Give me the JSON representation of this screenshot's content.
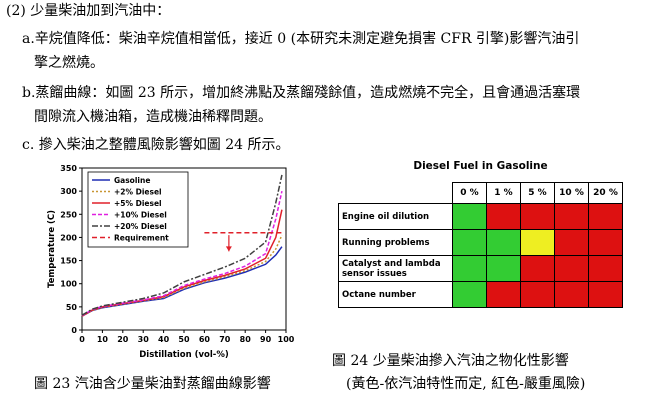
{
  "text": {
    "heading": "(2)  少量柴油加到汽油中：",
    "item_a_line1": "a.辛烷值降低：柴油辛烷值相當低，接近 0 (本研究未測定避免損害 CFR 引擎)影響汽油引",
    "item_a_line2": "擎之燃燒。",
    "item_b_line1": "b.蒸餾曲線：如圖 23 所示，增加終沸點及蒸餾殘餘值，造成燃燒不完全，且會通過活塞環",
    "item_b_line2": "間隙流入機油箱，造成機油稀釋問題。",
    "item_c": "c.  摻入柴油之整體風險影響如圖 24 所示。",
    "fig23_caption": "圖 23  汽油含少量柴油對蒸餾曲線影響",
    "fig24_caption_line1": "圖 24  少量柴油摻入汽油之物化性影響",
    "fig24_caption_line2": "(黃色-依汽油特性而定, 紅色-嚴重風險)"
  },
  "chart_data": {
    "type": "line",
    "xlabel": "Distillation (vol-%)",
    "ylabel": "Temperature (C)",
    "xlim": [
      0,
      100
    ],
    "ylim": [
      0,
      350
    ],
    "xticks": [
      0,
      10,
      20,
      30,
      40,
      50,
      60,
      70,
      80,
      90,
      100
    ],
    "yticks": [
      0,
      50,
      100,
      150,
      200,
      250,
      300,
      350
    ],
    "legend_position": "top-left",
    "series": [
      {
        "name": "Gasoline",
        "color": "#1f2db4",
        "dash": "",
        "x": [
          0,
          5,
          10,
          20,
          30,
          40,
          50,
          60,
          70,
          80,
          90,
          95,
          98
        ],
        "y": [
          30,
          42,
          48,
          55,
          62,
          68,
          88,
          102,
          112,
          125,
          142,
          162,
          180
        ]
      },
      {
        "name": "+2% Diesel",
        "color": "#c89632",
        "dash": "2,2",
        "x": [
          0,
          5,
          10,
          20,
          30,
          40,
          50,
          60,
          70,
          80,
          90,
          95,
          98
        ],
        "y": [
          30,
          42,
          49,
          56,
          63,
          70,
          90,
          104,
          115,
          128,
          148,
          175,
          205
        ]
      },
      {
        "name": "+5% Diesel",
        "color": "#e0202a",
        "dash": "",
        "x": [
          0,
          5,
          10,
          20,
          30,
          40,
          50,
          60,
          70,
          80,
          90,
          95,
          98
        ],
        "y": [
          30,
          43,
          50,
          57,
          64,
          72,
          93,
          107,
          118,
          132,
          155,
          200,
          260
        ]
      },
      {
        "name": "+10% Diesel",
        "color": "#e020e0",
        "dash": "4,2",
        "x": [
          0,
          5,
          10,
          20,
          30,
          40,
          50,
          60,
          70,
          80,
          90,
          95,
          98
        ],
        "y": [
          31,
          44,
          51,
          58,
          65,
          74,
          96,
          110,
          122,
          138,
          165,
          240,
          300
        ]
      },
      {
        "name": "+20% Diesel",
        "color": "#404040",
        "dash": "6,2,2,2",
        "x": [
          0,
          5,
          10,
          20,
          30,
          40,
          50,
          60,
          70,
          80,
          90,
          95,
          98
        ],
        "y": [
          32,
          45,
          52,
          60,
          68,
          80,
          104,
          120,
          136,
          155,
          190,
          275,
          335
        ]
      },
      {
        "name": "Requirement",
        "color": "#e0202a",
        "dash": "5,3",
        "x": [
          60,
          98
        ],
        "y": [
          210,
          210
        ]
      }
    ],
    "annotations": [
      {
        "type": "arrow",
        "x": 72,
        "y_from": 205,
        "y_to": 170,
        "color": "#e0202a"
      }
    ]
  },
  "risk_table": {
    "title": "Diesel Fuel in Gasoline",
    "columns": [
      "0 %",
      "1 %",
      "5 %",
      "10 %",
      "20 %"
    ],
    "rows": [
      {
        "label": "Engine oil dilution",
        "cells": [
          "green",
          "red",
          "red",
          "red",
          "red"
        ]
      },
      {
        "label": "Running problems",
        "cells": [
          "green",
          "green",
          "yellow",
          "red",
          "red"
        ]
      },
      {
        "label": "Catalyst and lambda sensor issues",
        "cells": [
          "green",
          "green",
          "red",
          "red",
          "red"
        ]
      },
      {
        "label": "Octane number",
        "cells": [
          "green",
          "red",
          "red",
          "red",
          "red"
        ]
      }
    ],
    "colors": {
      "green": "#33cc33",
      "red": "#dd1111",
      "yellow": "#eeee22"
    }
  }
}
